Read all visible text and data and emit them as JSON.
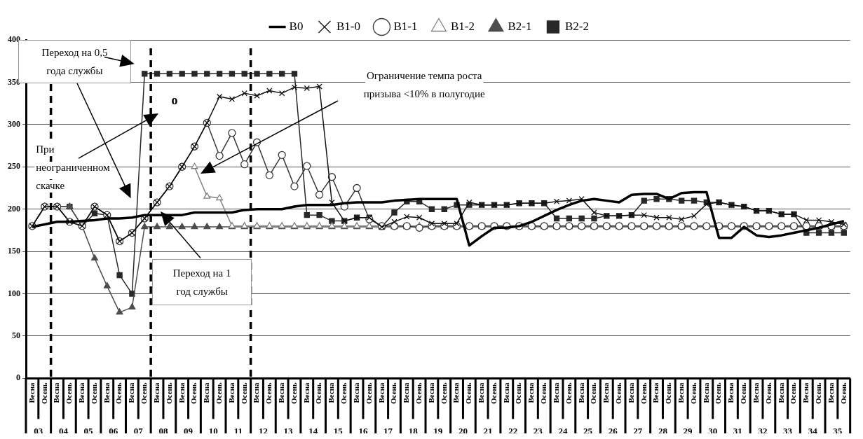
{
  "chart_data": {
    "type": "line",
    "categories": [
      "Весна",
      "Осень",
      "Весна",
      "Осень",
      "Весна",
      "Осень",
      "Весна",
      "Осень",
      "Весна",
      "Осень",
      "Весна",
      "Осень",
      "Весна",
      "Осень",
      "Весна",
      "Осень",
      "Весна",
      "Осень",
      "Весна",
      "Осень",
      "Весна",
      "Осень",
      "Весна",
      "Осень",
      "Весна",
      "Осень",
      "Весна",
      "Осень",
      "Весна",
      "Осень",
      "Весна",
      "Осень",
      "Весна",
      "Осень",
      "Весна",
      "Осень",
      "Весна",
      "Осень",
      "Весна",
      "Осень",
      "Весна",
      "Осень",
      "Весна",
      "Осень",
      "Весна",
      "Осень",
      "Весна",
      "Осень",
      "Весна",
      "Осень",
      "Весна",
      "Осень",
      "Весна",
      "Осень",
      "Весна",
      "Осень",
      "Весна",
      "Осень",
      "Весна",
      "Осень",
      "Весна",
      "Осень",
      "Весна",
      "Осень",
      "Весна",
      "Осень"
    ],
    "series": [
      {
        "name": "B0",
        "color": "#000000",
        "marker": "none",
        "values": [
          179,
          182,
          185,
          185,
          186,
          187,
          189,
          189,
          190,
          193,
          193,
          193,
          193,
          196,
          196,
          196,
          196,
          199,
          200,
          200,
          200,
          203,
          205,
          205,
          205,
          207,
          208,
          208,
          208,
          210,
          211,
          212,
          212,
          212,
          212,
          157,
          168,
          178,
          178,
          180,
          185,
          192,
          199,
          205,
          210,
          212,
          210,
          208,
          217,
          218,
          218,
          212,
          219,
          220,
          220,
          166,
          166,
          179,
          169,
          167,
          169,
          172,
          175,
          178,
          182,
          186
        ]
      },
      {
        "name": "B1-0",
        "color": "#111111",
        "marker": "cross",
        "values": [
          180,
          203,
          203,
          185,
          180,
          203,
          193,
          162,
          172,
          189,
          208,
          227,
          250,
          274,
          302,
          333,
          330,
          337,
          334,
          340,
          337,
          344,
          343,
          345,
          208,
          186,
          190,
          190,
          179,
          185,
          191,
          190,
          183,
          183,
          183,
          208,
          205,
          205,
          205,
          207,
          207,
          207,
          209,
          210,
          212,
          196,
          192,
          192,
          193,
          193,
          190,
          190,
          188,
          192,
          206,
          208,
          205,
          203,
          198,
          198,
          194,
          194,
          187,
          187,
          185,
          182
        ]
      },
      {
        "name": "B1-1",
        "color": "#383838",
        "marker": "circle",
        "values": [
          180,
          203,
          203,
          185,
          180,
          203,
          193,
          162,
          172,
          189,
          208,
          227,
          250,
          274,
          302,
          263,
          290,
          253,
          279,
          240,
          264,
          227,
          251,
          217,
          238,
          203,
          225,
          188,
          180,
          180,
          180,
          178,
          180,
          180,
          180,
          180,
          180,
          180,
          180,
          180,
          180,
          180,
          180,
          180,
          180,
          180,
          180,
          180,
          180,
          180,
          180,
          180,
          180,
          180,
          180,
          180,
          180,
          180,
          180,
          180,
          180,
          180,
          180,
          180,
          180,
          180
        ]
      },
      {
        "name": "B1-2",
        "color": "#808080",
        "marker": "triangle",
        "values": [
          180,
          203,
          203,
          185,
          180,
          203,
          193,
          162,
          172,
          189,
          208,
          227,
          250,
          250,
          215,
          213,
          180,
          180,
          180,
          180,
          180,
          180,
          180,
          180,
          180,
          180,
          180,
          180,
          180,
          180,
          180,
          180,
          180,
          180,
          180,
          180,
          180,
          180,
          180,
          180,
          180,
          180,
          180,
          180,
          180,
          180,
          180,
          180,
          180,
          180,
          180,
          180,
          180,
          180,
          180,
          180,
          180,
          180,
          180,
          180,
          180,
          180,
          180,
          180,
          180,
          180
        ]
      },
      {
        "name": "B2-1",
        "color": "#4d4d4d",
        "marker": "triangle",
        "values": [
          180,
          203,
          203,
          203,
          180,
          142,
          109,
          78,
          84,
          179,
          179,
          179,
          179,
          179,
          179,
          179,
          179,
          179,
          179,
          179,
          179,
          179,
          179,
          179,
          179,
          179,
          179,
          179,
          179,
          179,
          179,
          179,
          179,
          179,
          179,
          179,
          179,
          179,
          179,
          179,
          179,
          179,
          179,
          179,
          179,
          179,
          179,
          179,
          179,
          179,
          179,
          179,
          179,
          179,
          179,
          179,
          179,
          179,
          179,
          179,
          179,
          179,
          179,
          179,
          179,
          179
        ]
      },
      {
        "name": "B2-2",
        "color": "#282828",
        "marker": "square",
        "values": [
          180,
          203,
          203,
          203,
          180,
          195,
          193,
          122,
          100,
          360,
          360,
          360,
          360,
          360,
          360,
          360,
          360,
          360,
          360,
          360,
          360,
          360,
          193,
          193,
          186,
          186,
          190,
          190,
          179,
          196,
          209,
          209,
          200,
          200,
          205,
          205,
          205,
          205,
          205,
          207,
          207,
          207,
          189,
          189,
          189,
          189,
          192,
          192,
          193,
          210,
          212,
          212,
          210,
          210,
          208,
          208,
          205,
          203,
          198,
          198,
          194,
          194,
          172,
          172,
          172,
          172
        ]
      }
    ],
    "ylim": [
      0,
      400
    ],
    "yticks": [
      0,
      50,
      100,
      150,
      200,
      250,
      300,
      350,
      400
    ],
    "grid": "y",
    "legend": "top",
    "annotations": [
      "Переход на 0,5 года службы",
      "При неограниченном скачке",
      "o",
      "Ограничение темпа роста призыва <10% в полугодие",
      "Переход на 1 год службы",
      "03",
      "04",
      "05",
      "06",
      "07",
      "08",
      "09",
      "10",
      "11",
      "12",
      "13",
      "14",
      "15",
      "16",
      "17",
      "18",
      "19",
      "20",
      "21",
      "22",
      "23",
      "24",
      "25",
      "26",
      "27",
      "28",
      "29",
      "30",
      "31",
      "32",
      "33",
      "34",
      "35"
    ]
  }
}
